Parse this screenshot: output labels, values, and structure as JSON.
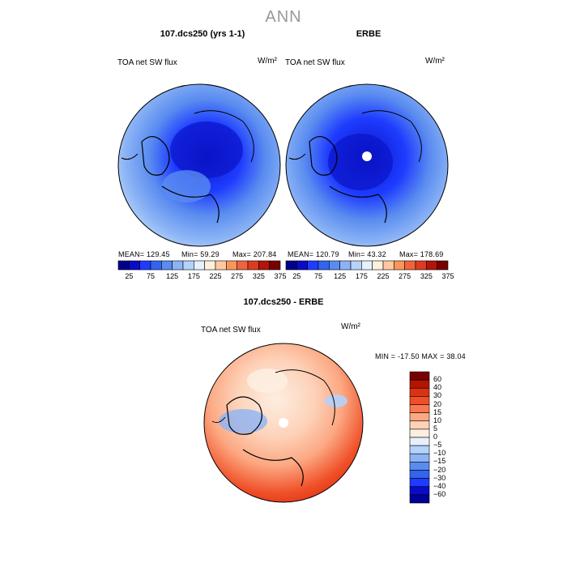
{
  "title": "ANN",
  "panels": [
    {
      "title": "107.dcs250 (yrs 1-1)",
      "field": "TOA net SW flux",
      "units": "W/m²",
      "stats": {
        "mean": "MEAN= 129.45",
        "min": "Min=  59.29",
        "max": "Max= 207.84"
      },
      "colorbar_ticks": [
        "25",
        "75",
        "125",
        "175",
        "225",
        "275",
        "325",
        "375"
      ]
    },
    {
      "title": "ERBE",
      "field": "TOA net SW flux",
      "units": "W/m²",
      "stats": {
        "mean": "MEAN= 120.79",
        "min": "Min=  43.32",
        "max": "Max= 178.69"
      },
      "colorbar_ticks": [
        "25",
        "75",
        "125",
        "175",
        "225",
        "275",
        "325",
        "375"
      ]
    },
    {
      "title": "107.dcs250 - ERBE",
      "field": "TOA net SW flux",
      "units": "W/m²",
      "stats_line": "MIN = -17.50 MAX =  38.04",
      "colorbar_ticks": [
        "60",
        "40",
        "30",
        "20",
        "15",
        "10",
        "5",
        "0",
        "-5",
        "-10",
        "-15",
        "-20",
        "-30",
        "-40",
        "-60"
      ]
    }
  ],
  "colors": {
    "abs_scale": [
      "#00008b",
      "#0a0ac8",
      "#1e3cff",
      "#3264f0",
      "#5a8cf0",
      "#8cb4f5",
      "#b4d2fa",
      "#e6f0ff",
      "#fff0dc",
      "#ffc8a0",
      "#fa965a",
      "#f0643c",
      "#dc3c1e",
      "#b4140a",
      "#780000"
    ],
    "diff_scale": [
      "#780000",
      "#b41400",
      "#dc3214",
      "#f05028",
      "#fa7850",
      "#fca882",
      "#fdd2b9",
      "#fdeee1",
      "#e6f0ff",
      "#b4d2fa",
      "#8cb4f5",
      "#5a8cf0",
      "#3264f0",
      "#1e3cff",
      "#0a0ac8",
      "#000096"
    ]
  },
  "chart_data": [
    {
      "type": "heatmap",
      "title": "107.dcs250 (yrs 1-1)",
      "subtitle": "TOA net SW flux",
      "units": "W/m2",
      "projection": "north polar stereographic",
      "contour_levels": [
        25,
        50,
        75,
        100,
        125,
        150,
        175,
        200,
        225,
        250,
        275,
        300,
        325,
        350,
        375
      ],
      "mean": 129.45,
      "min": 59.29,
      "max": 207.84
    },
    {
      "type": "heatmap",
      "title": "ERBE",
      "subtitle": "TOA net SW flux",
      "units": "W/m2",
      "projection": "north polar stereographic",
      "contour_levels": [
        25,
        50,
        75,
        100,
        125,
        150,
        175,
        200,
        225,
        250,
        275,
        300,
        325,
        350,
        375
      ],
      "mean": 120.79,
      "min": 43.32,
      "max": 178.69
    },
    {
      "type": "heatmap",
      "title": "107.dcs250 - ERBE",
      "subtitle": "TOA net SW flux",
      "units": "W/m2",
      "projection": "north polar stereographic",
      "contour_levels": [
        -60,
        -40,
        -30,
        -20,
        -15,
        -10,
        -5,
        0,
        5,
        10,
        15,
        20,
        30,
        40,
        60
      ],
      "min": -17.5,
      "max": 38.04
    }
  ]
}
